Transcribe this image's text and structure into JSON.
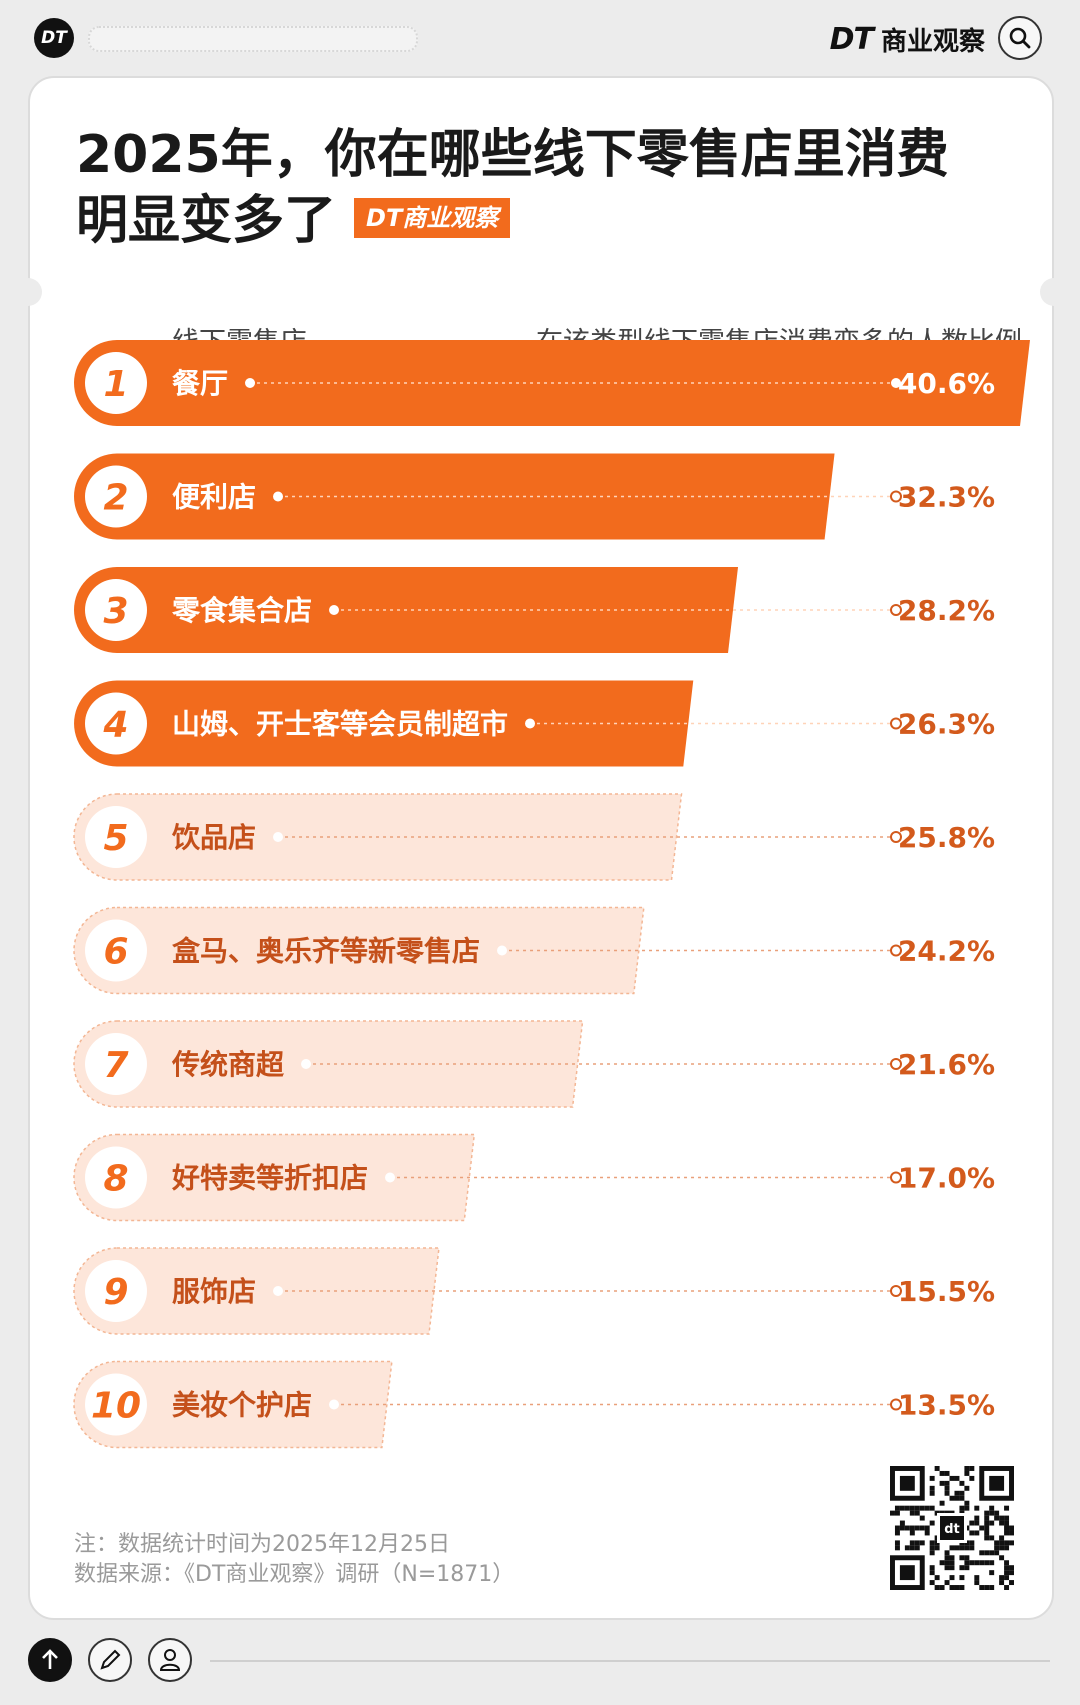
{
  "header": {
    "logo": "DT",
    "brand_dt": "DT",
    "brand_name": "商业观察"
  },
  "title": {
    "line1": "2025年，你在哪些线下零售店里消费",
    "line2": "明显变多了",
    "badge": "DT商业观察"
  },
  "columns": {
    "left": "线下零售店",
    "right": "在该类型线下零售店消费变多的人数比例"
  },
  "chart_data": {
    "type": "bar",
    "orientation": "horizontal",
    "categories": [
      "餐厅",
      "便利店",
      "零食集合店",
      "山姆、开士客等会员制超市",
      "饮品店",
      "盒马、奥乐齐等新零售店",
      "传统商超",
      "好特卖等折扣店",
      "服饰店",
      "美妆个护店"
    ],
    "ranks": [
      "1",
      "2",
      "3",
      "4",
      "5",
      "6",
      "7",
      "8",
      "9",
      "10"
    ],
    "values": [
      40.6,
      32.3,
      28.2,
      26.3,
      25.8,
      24.2,
      21.6,
      17.0,
      15.5,
      13.5
    ],
    "value_labels": [
      "40.6%",
      "32.3%",
      "28.2%",
      "26.3%",
      "25.8%",
      "24.2%",
      "21.6%",
      "17.0%",
      "15.5%",
      "13.5%"
    ],
    "highlight_count": 4,
    "colors": {
      "highlight": "#f26b1d",
      "muted_fill": "#fde6da",
      "muted_border": "#f3b694",
      "text_dark": "#c4501a",
      "value": "#d35a1c"
    }
  },
  "notes": {
    "line1": "注：数据统计时间为2025年12月25日",
    "line2": "数据来源：《DT商业观察》调研（N=1871）"
  },
  "qr": {
    "center": "dt"
  }
}
